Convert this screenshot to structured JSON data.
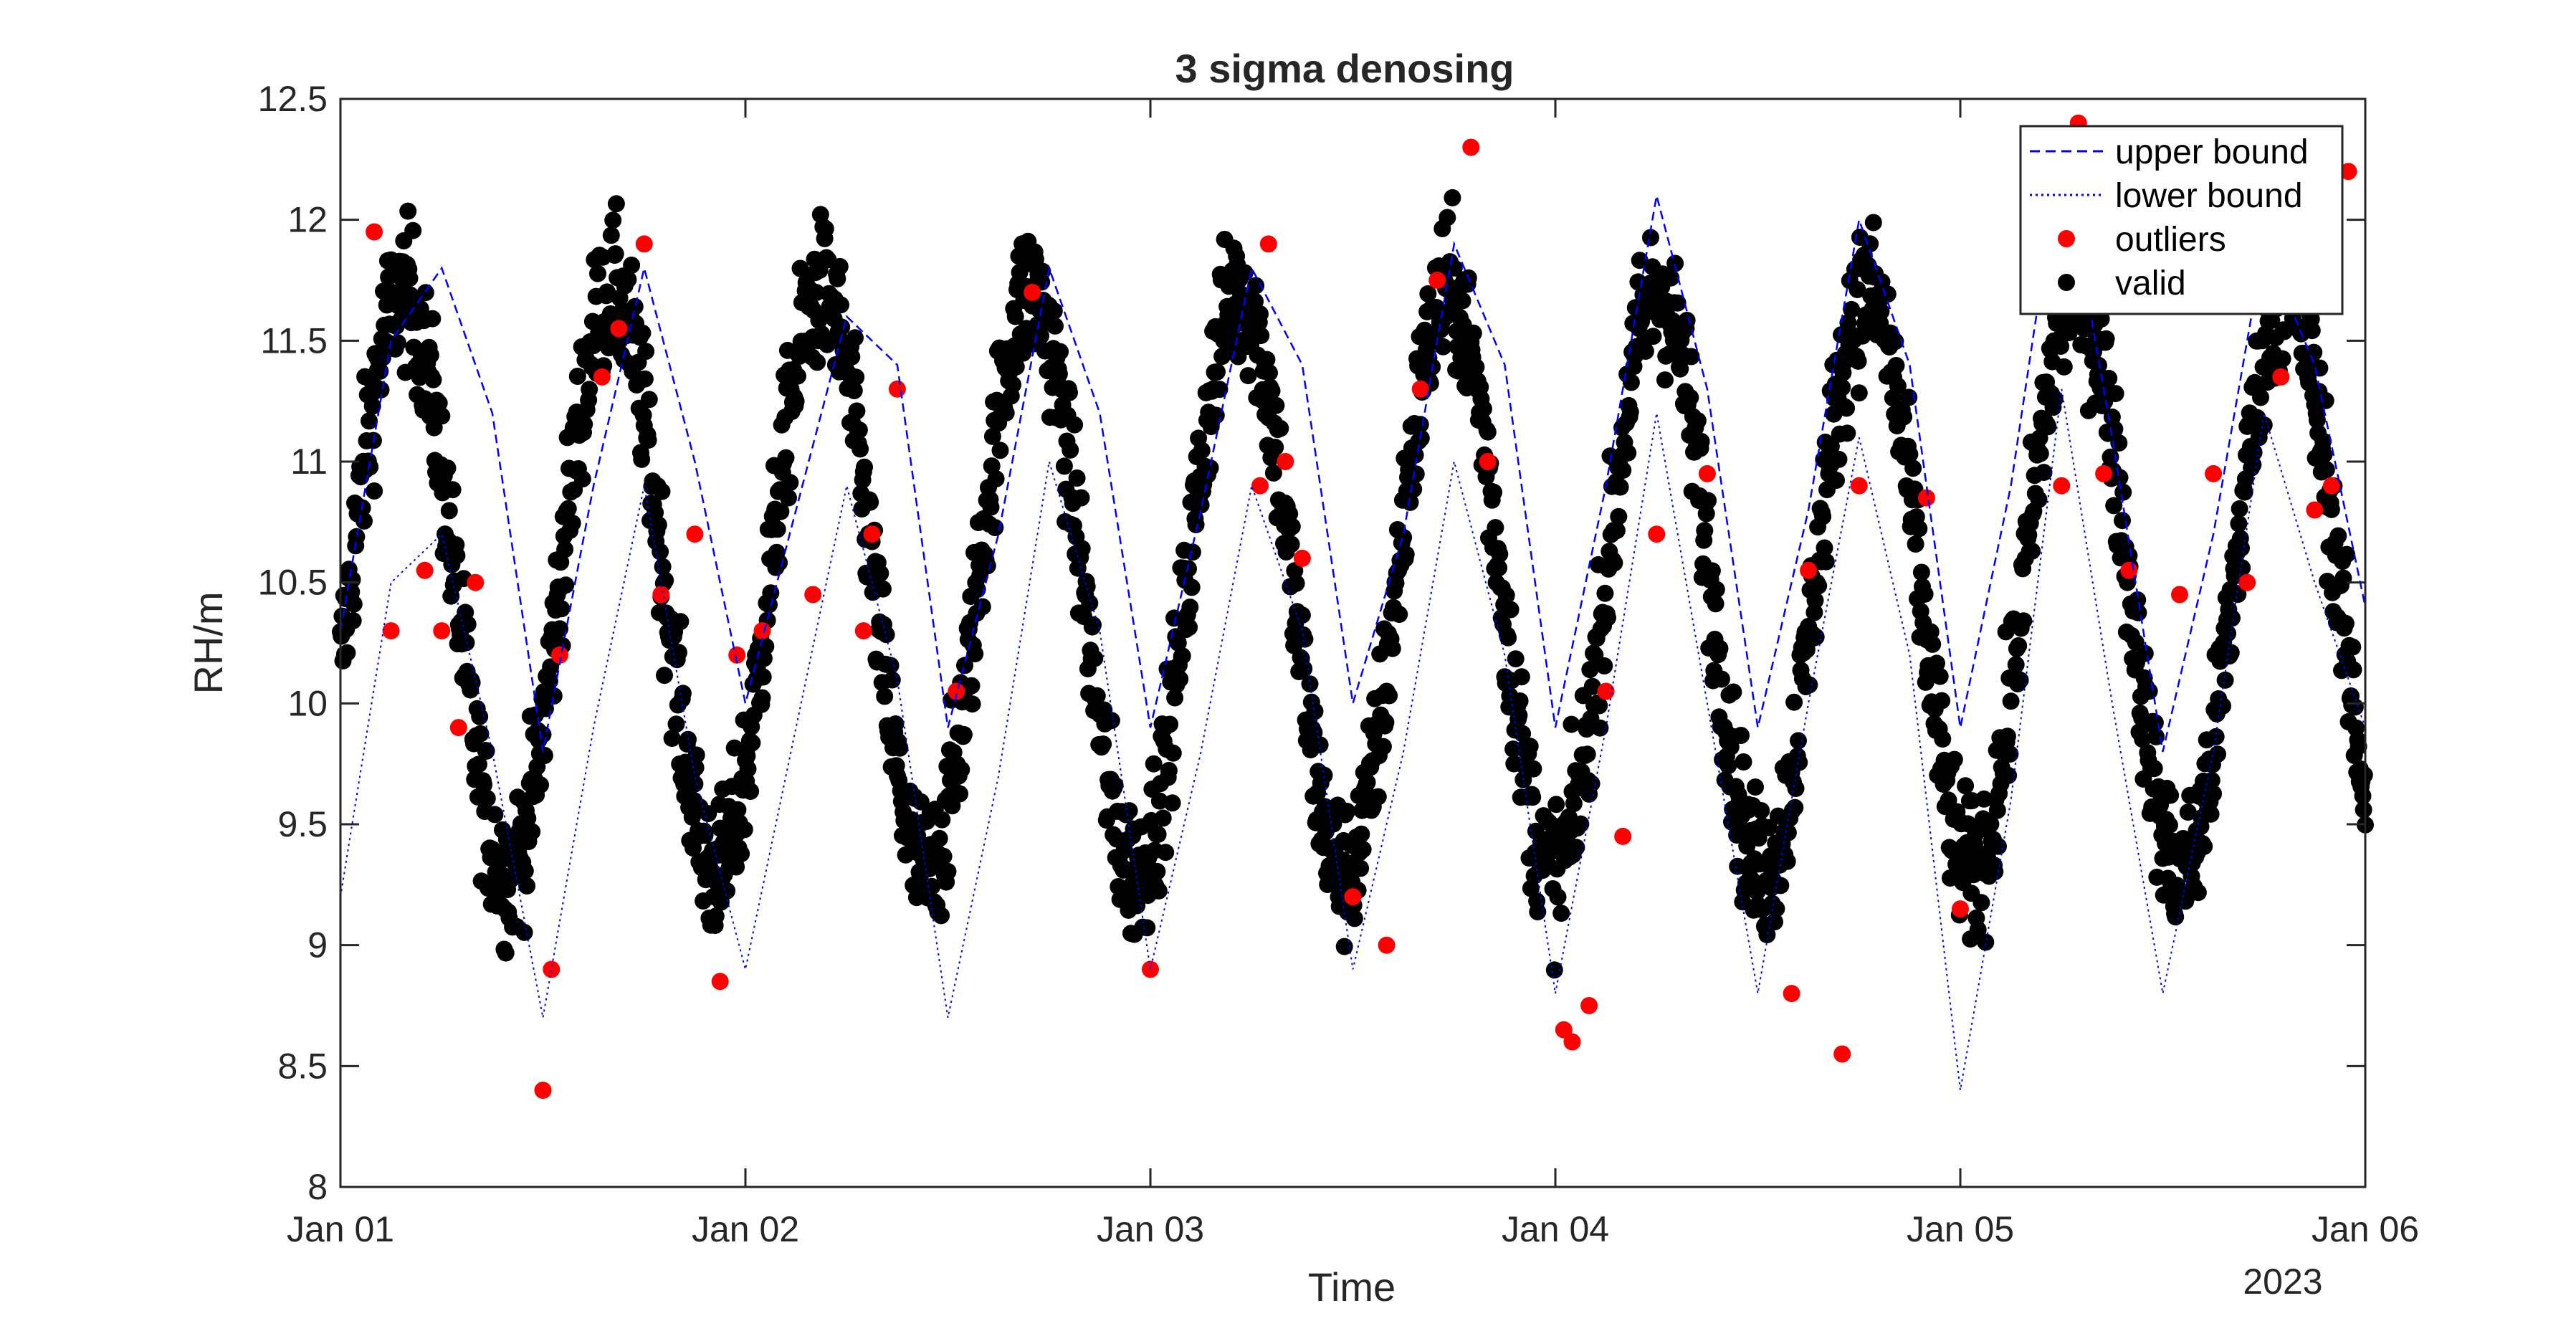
{
  "chart_data": {
    "type": "scatter",
    "title": "3 sigma denosing",
    "xlabel": "Time",
    "ylabel": "RH/m",
    "x_secondary_label": "2023",
    "xlim": [
      "2023-01-01 00:00",
      "2023-01-06 00:00"
    ],
    "ylim": [
      8,
      12.5
    ],
    "x_ticks": [
      "Jan 01",
      "Jan 02",
      "Jan 03",
      "Jan 04",
      "Jan 05",
      "Jan 06"
    ],
    "y_ticks": [
      "8",
      "8.5",
      "9",
      "9.5",
      "10",
      "10.5",
      "11",
      "11.5",
      "12",
      "12.5"
    ],
    "grid": false,
    "legend_position": "top-right",
    "colors": {
      "bound": "#0000ff",
      "outliers": "#ff0000",
      "valid": "#000000",
      "axis": "#262626"
    },
    "series": [
      {
        "name": "upper bound",
        "style": "dashed",
        "x": [
          "2023-01-01 00:00",
          "2023-01-01 03:00",
          "2023-01-01 06:00",
          "2023-01-01 09:00",
          "2023-01-01 12:00",
          "2023-01-01 15:00",
          "2023-01-01 18:00",
          "2023-01-01 21:00",
          "2023-01-02 00:00",
          "2023-01-02 03:00",
          "2023-01-02 06:00",
          "2023-01-02 09:00",
          "2023-01-02 12:00",
          "2023-01-02 15:00",
          "2023-01-02 18:00",
          "2023-01-02 21:00",
          "2023-01-03 00:00",
          "2023-01-03 03:00",
          "2023-01-03 06:00",
          "2023-01-03 09:00",
          "2023-01-03 12:00",
          "2023-01-03 15:00",
          "2023-01-03 18:00",
          "2023-01-03 21:00",
          "2023-01-04 00:00",
          "2023-01-04 03:00",
          "2023-01-04 06:00",
          "2023-01-04 09:00",
          "2023-01-04 12:00",
          "2023-01-04 15:00",
          "2023-01-04 18:00",
          "2023-01-04 21:00",
          "2023-01-05 00:00",
          "2023-01-05 03:00",
          "2023-01-05 06:00",
          "2023-01-05 09:00",
          "2023-01-05 12:00",
          "2023-01-05 15:00",
          "2023-01-05 18:00",
          "2023-01-05 21:00",
          "2023-01-06 00:00"
        ],
        "y": [
          10.3,
          11.5,
          11.8,
          11.2,
          9.8,
          10.9,
          11.8,
          11.0,
          10.0,
          10.8,
          11.6,
          11.4,
          9.9,
          10.7,
          11.8,
          11.2,
          9.9,
          10.8,
          11.8,
          11.4,
          10.0,
          10.7,
          11.9,
          11.4,
          9.9,
          10.9,
          12.1,
          11.3,
          9.9,
          10.8,
          12.0,
          11.4,
          9.9,
          10.9,
          12.3,
          11.1,
          9.8,
          10.7,
          11.9,
          11.4,
          10.4
        ]
      },
      {
        "name": "lower bound",
        "style": "dotted",
        "x": [
          "2023-01-01 00:00",
          "2023-01-01 03:00",
          "2023-01-01 06:00",
          "2023-01-01 09:00",
          "2023-01-01 12:00",
          "2023-01-01 15:00",
          "2023-01-01 18:00",
          "2023-01-01 21:00",
          "2023-01-02 00:00",
          "2023-01-02 03:00",
          "2023-01-02 06:00",
          "2023-01-02 09:00",
          "2023-01-02 12:00",
          "2023-01-02 15:00",
          "2023-01-02 18:00",
          "2023-01-02 21:00",
          "2023-01-03 00:00",
          "2023-01-03 03:00",
          "2023-01-03 06:00",
          "2023-01-03 09:00",
          "2023-01-03 12:00",
          "2023-01-03 15:00",
          "2023-01-03 18:00",
          "2023-01-03 21:00",
          "2023-01-04 00:00",
          "2023-01-04 03:00",
          "2023-01-04 06:00",
          "2023-01-04 09:00",
          "2023-01-04 12:00",
          "2023-01-04 15:00",
          "2023-01-04 18:00",
          "2023-01-04 21:00",
          "2023-01-05 00:00",
          "2023-01-05 03:00",
          "2023-01-05 06:00",
          "2023-01-05 09:00",
          "2023-01-05 12:00",
          "2023-01-05 15:00",
          "2023-01-05 18:00",
          "2023-01-05 21:00",
          "2023-01-06 00:00"
        ],
        "y": [
          9.2,
          10.5,
          10.7,
          9.8,
          8.7,
          9.9,
          10.9,
          9.7,
          8.9,
          9.9,
          10.9,
          10.1,
          8.7,
          9.7,
          11.0,
          10.3,
          8.9,
          9.8,
          10.9,
          10.3,
          8.9,
          9.8,
          11.0,
          10.2,
          8.8,
          9.9,
          11.2,
          10.0,
          8.8,
          10.0,
          11.1,
          10.2,
          8.4,
          9.6,
          11.3,
          10.0,
          8.8,
          9.8,
          11.2,
          10.5,
          9.9
        ]
      },
      {
        "name": "outliers",
        "style": "markers",
        "x": [
          "2023-01-01 02:00",
          "2023-01-01 03:00",
          "2023-01-01 05:00",
          "2023-01-01 06:00",
          "2023-01-01 07:00",
          "2023-01-01 08:00",
          "2023-01-01 12:00",
          "2023-01-01 12:30",
          "2023-01-01 13:00",
          "2023-01-01 15:30",
          "2023-01-01 16:30",
          "2023-01-01 18:00",
          "2023-01-01 19:00",
          "2023-01-01 21:00",
          "2023-01-01 22:30",
          "2023-01-01 23:30",
          "2023-01-02 01:00",
          "2023-01-02 04:00",
          "2023-01-02 07:00",
          "2023-01-02 07:30",
          "2023-01-02 09:00",
          "2023-01-02 12:30",
          "2023-01-02 17:00",
          "2023-01-03 00:00",
          "2023-01-03 06:30",
          "2023-01-03 07:00",
          "2023-01-03 08:00",
          "2023-01-03 09:00",
          "2023-01-03 12:00",
          "2023-01-03 14:00",
          "2023-01-03 16:00",
          "2023-01-03 17:00",
          "2023-01-03 19:00",
          "2023-01-03 20:00",
          "2023-01-04 00:30",
          "2023-01-04 01:00",
          "2023-01-04 02:00",
          "2023-01-04 03:00",
          "2023-01-04 04:00",
          "2023-01-04 06:00",
          "2023-01-04 09:00",
          "2023-01-04 14:00",
          "2023-01-04 15:00",
          "2023-01-04 17:00",
          "2023-01-04 18:00",
          "2023-01-04 22:00",
          "2023-01-05 00:00",
          "2023-01-05 06:00",
          "2023-01-05 07:00",
          "2023-01-05 08:30",
          "2023-01-05 10:00",
          "2023-01-05 13:00",
          "2023-01-05 15:00",
          "2023-01-05 17:00",
          "2023-01-05 19:00",
          "2023-01-05 21:00",
          "2023-01-05 22:00",
          "2023-01-05 23:00"
        ],
        "y": [
          11.95,
          10.3,
          10.55,
          10.3,
          9.9,
          10.5,
          8.4,
          8.9,
          10.2,
          11.35,
          11.55,
          11.9,
          10.45,
          10.7,
          8.85,
          10.2,
          10.3,
          10.45,
          10.3,
          10.7,
          11.3,
          10.05,
          11.7,
          8.9,
          10.9,
          11.9,
          11.0,
          10.6,
          9.2,
          9.0,
          11.3,
          11.75,
          12.3,
          11.0,
          8.65,
          8.6,
          8.75,
          10.05,
          9.45,
          10.7,
          10.95,
          8.8,
          10.55,
          8.55,
          10.9,
          10.85,
          9.15,
          10.9,
          12.4,
          10.95,
          10.55,
          10.45,
          10.95,
          10.5,
          11.35,
          10.8,
          10.9,
          12.2
        ]
      },
      {
        "name": "valid",
        "style": "markers",
        "model": {
          "mean": 10.5,
          "amplitude": 1.2,
          "period_hours": 12.4,
          "noise": 0.22
        }
      }
    ]
  }
}
